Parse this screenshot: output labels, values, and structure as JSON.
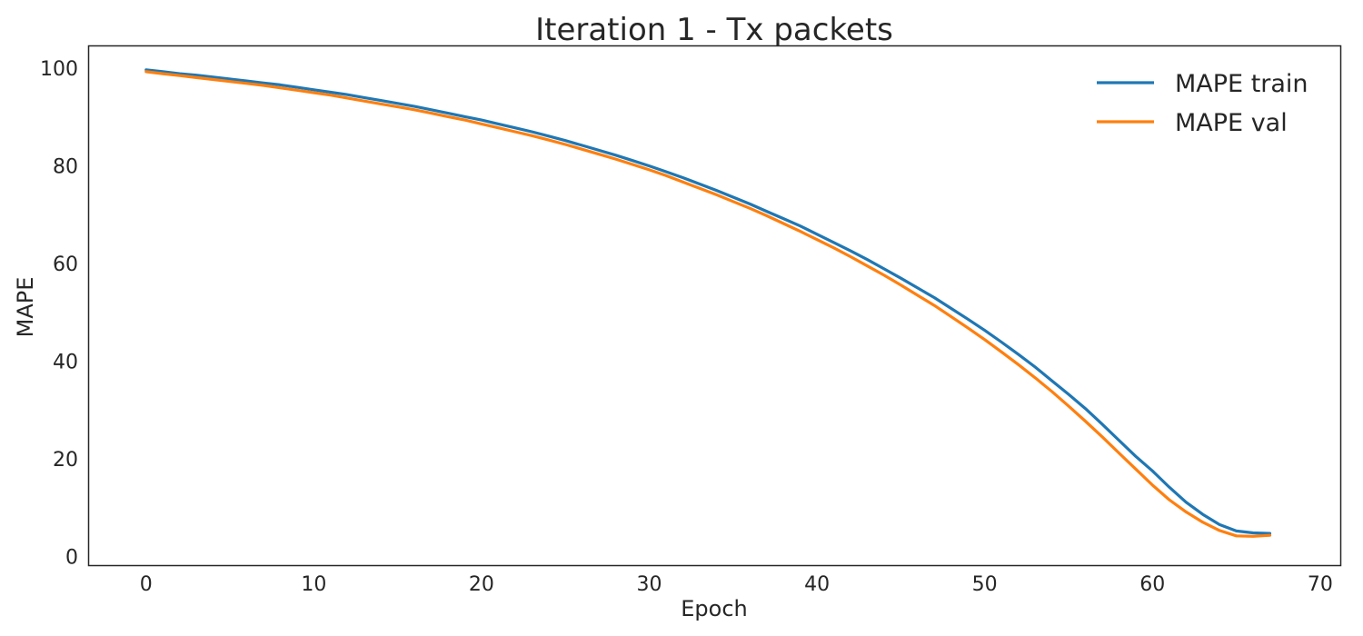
{
  "chart_data": {
    "type": "line",
    "title": "Iteration 1 - Tx packets",
    "xlabel": "Epoch",
    "ylabel": "MAPE",
    "xlim": [
      -3.4,
      71.2
    ],
    "ylim": [
      -1.8,
      104.5
    ],
    "xticks": [
      0,
      10,
      20,
      30,
      40,
      50,
      60,
      70
    ],
    "yticks": [
      0,
      20,
      40,
      60,
      80,
      100
    ],
    "grid": false,
    "legend_position": "top-right",
    "series": [
      {
        "name": "MAPE train",
        "color": "#1f77b4",
        "x": [
          0,
          1,
          2,
          3,
          4,
          5,
          6,
          7,
          8,
          9,
          10,
          11,
          12,
          13,
          14,
          15,
          16,
          17,
          18,
          19,
          20,
          21,
          22,
          23,
          24,
          25,
          26,
          27,
          28,
          29,
          30,
          31,
          32,
          33,
          34,
          35,
          36,
          37,
          38,
          39,
          40,
          41,
          42,
          43,
          44,
          45,
          46,
          47,
          48,
          49,
          50,
          51,
          52,
          53,
          54,
          55,
          56,
          57,
          58,
          59,
          60,
          61,
          62,
          63,
          64,
          65,
          66,
          67
        ],
        "values": [
          99.7,
          99.3,
          98.9,
          98.6,
          98.2,
          97.8,
          97.4,
          97.0,
          96.6,
          96.1,
          95.6,
          95.1,
          94.6,
          94.0,
          93.4,
          92.8,
          92.2,
          91.5,
          90.8,
          90.1,
          89.4,
          88.6,
          87.8,
          87.0,
          86.1,
          85.2,
          84.2,
          83.2,
          82.2,
          81.1,
          80.0,
          78.8,
          77.6,
          76.3,
          75.0,
          73.6,
          72.2,
          70.7,
          69.2,
          67.7,
          66.0,
          64.3,
          62.6,
          60.8,
          58.9,
          57.0,
          55.0,
          53.0,
          50.8,
          48.6,
          46.3,
          43.9,
          41.4,
          38.8,
          36.0,
          33.2,
          30.3,
          27.1,
          23.8,
          20.5,
          17.5,
          14.2,
          11.1,
          8.6,
          6.5,
          5.2,
          4.8,
          4.7
        ]
      },
      {
        "name": "MAPE val",
        "color": "#ff7f0e",
        "x": [
          0,
          1,
          2,
          3,
          4,
          5,
          6,
          7,
          8,
          9,
          10,
          11,
          12,
          13,
          14,
          15,
          16,
          17,
          18,
          19,
          20,
          21,
          22,
          23,
          24,
          25,
          26,
          27,
          28,
          29,
          30,
          31,
          32,
          33,
          34,
          35,
          36,
          37,
          38,
          39,
          40,
          41,
          42,
          43,
          44,
          45,
          46,
          47,
          48,
          49,
          50,
          51,
          52,
          53,
          54,
          55,
          56,
          57,
          58,
          59,
          60,
          61,
          62,
          63,
          64,
          65,
          66,
          67
        ],
        "values": [
          99.3,
          98.9,
          98.5,
          98.1,
          97.7,
          97.3,
          96.9,
          96.5,
          96.0,
          95.5,
          95.0,
          94.5,
          93.9,
          93.3,
          92.7,
          92.1,
          91.5,
          90.8,
          90.1,
          89.4,
          88.6,
          87.8,
          87.0,
          86.2,
          85.3,
          84.4,
          83.4,
          82.4,
          81.4,
          80.3,
          79.2,
          78.0,
          76.7,
          75.4,
          74.1,
          72.7,
          71.3,
          69.8,
          68.2,
          66.6,
          64.9,
          63.2,
          61.4,
          59.5,
          57.6,
          55.6,
          53.5,
          51.4,
          49.1,
          46.8,
          44.4,
          41.9,
          39.3,
          36.6,
          33.8,
          30.8,
          27.7,
          24.5,
          21.2,
          17.9,
          14.6,
          11.6,
          9.1,
          7.0,
          5.3,
          4.2,
          4.1,
          4.3
        ]
      }
    ]
  }
}
